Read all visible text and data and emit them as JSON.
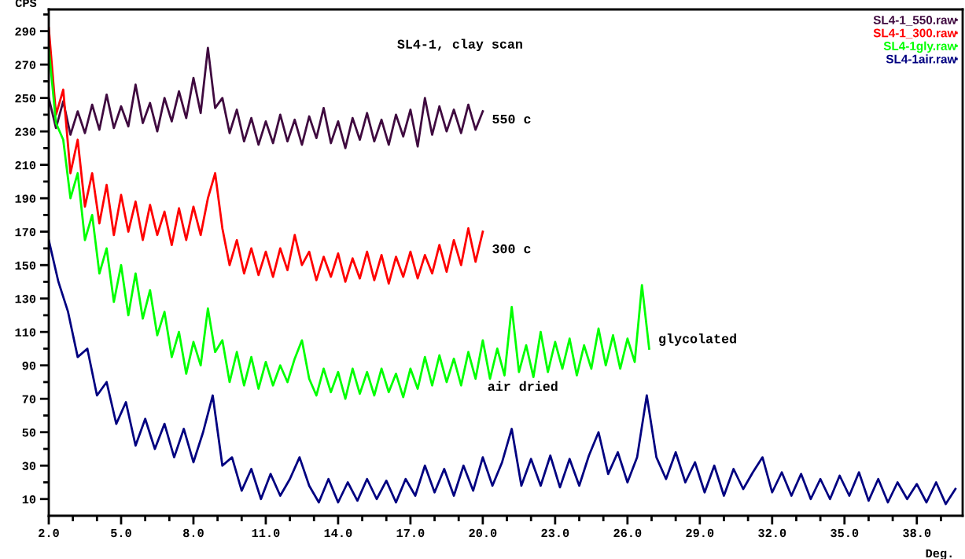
{
  "chart_data": {
    "type": "line",
    "title": "SL4-1, clay scan",
    "xlabel": "Deg.",
    "ylabel": "CPS",
    "xlim": [
      2,
      39.9
    ],
    "ylim": [
      0,
      303
    ],
    "xticks": [
      {
        "value": 2,
        "label": "2.0"
      },
      {
        "value": 3,
        "label": null
      },
      {
        "value": 4,
        "label": null
      },
      {
        "value": 5,
        "label": "5.0"
      },
      {
        "value": 6,
        "label": null
      },
      {
        "value": 7,
        "label": null
      },
      {
        "value": 8,
        "label": "8.0"
      },
      {
        "value": 9,
        "label": null
      },
      {
        "value": 10,
        "label": null
      },
      {
        "value": 11,
        "label": "11.0"
      },
      {
        "value": 12,
        "label": null
      },
      {
        "value": 13,
        "label": null
      },
      {
        "value": 14,
        "label": "14.0"
      },
      {
        "value": 15,
        "label": null
      },
      {
        "value": 16,
        "label": null
      },
      {
        "value": 17,
        "label": "17.0"
      },
      {
        "value": 18,
        "label": null
      },
      {
        "value": 19,
        "label": null
      },
      {
        "value": 20,
        "label": "20.0"
      },
      {
        "value": 21,
        "label": null
      },
      {
        "value": 22,
        "label": null
      },
      {
        "value": 23,
        "label": "23.0"
      },
      {
        "value": 24,
        "label": null
      },
      {
        "value": 25,
        "label": null
      },
      {
        "value": 26,
        "label": "26.0"
      },
      {
        "value": 27,
        "label": null
      },
      {
        "value": 28,
        "label": null
      },
      {
        "value": 29,
        "label": "29.0"
      },
      {
        "value": 30,
        "label": null
      },
      {
        "value": 31,
        "label": null
      },
      {
        "value": 32,
        "label": "32.0"
      },
      {
        "value": 33,
        "label": null
      },
      {
        "value": 34,
        "label": null
      },
      {
        "value": 35,
        "label": "35.0"
      },
      {
        "value": 36,
        "label": null
      },
      {
        "value": 37,
        "label": null
      },
      {
        "value": 38,
        "label": "38.0"
      },
      {
        "value": 39,
        "label": null
      }
    ],
    "yticks": [
      10,
      {
        "value": 20,
        "label": null
      },
      30,
      {
        "value": 40,
        "label": null
      },
      50,
      {
        "value": 60,
        "label": null
      },
      70,
      {
        "value": 80,
        "label": null
      },
      90,
      {
        "value": 100,
        "label": null
      },
      110,
      {
        "value": 120,
        "label": null
      },
      130,
      {
        "value": 140,
        "label": null
      },
      150,
      {
        "value": 160,
        "label": null
      },
      170,
      {
        "value": 180,
        "label": null
      },
      190,
      {
        "value": 200,
        "label": null
      },
      210,
      {
        "value": 220,
        "label": null
      },
      230,
      {
        "value": 240,
        "label": null
      },
      250,
      {
        "value": 260,
        "label": null
      },
      270,
      {
        "value": 280,
        "label": null
      },
      290,
      {
        "value": 300,
        "label": null
      }
    ],
    "grid": false,
    "legend": "top right",
    "marker": "none",
    "line_style": "solid",
    "annotations": [
      "550 c",
      "300 c",
      "glycolated",
      "air dried"
    ],
    "series": [
      {
        "name": "SL4-1_550.raw",
        "color": "#3f0a3f",
        "x": [
          2.0,
          2.3,
          2.6,
          2.9,
          3.2,
          3.5,
          3.8,
          4.1,
          4.4,
          4.7,
          5.0,
          5.3,
          5.6,
          5.9,
          6.2,
          6.5,
          6.8,
          7.1,
          7.4,
          7.7,
          8.0,
          8.3,
          8.6,
          8.9,
          9.2,
          9.5,
          9.8,
          10.1,
          10.4,
          10.7,
          11.0,
          11.3,
          11.6,
          11.9,
          12.2,
          12.5,
          12.8,
          13.1,
          13.4,
          13.7,
          14.0,
          14.3,
          14.6,
          14.9,
          15.2,
          15.5,
          15.8,
          16.1,
          16.4,
          16.7,
          17.0,
          17.3,
          17.6,
          17.9,
          18.2,
          18.5,
          18.8,
          19.1,
          19.4,
          19.7,
          20.0
        ],
        "values": [
          250,
          232,
          248,
          228,
          242,
          229,
          246,
          231,
          252,
          232,
          245,
          233,
          258,
          235,
          247,
          230,
          250,
          236,
          254,
          238,
          262,
          241,
          280,
          244,
          250,
          229,
          243,
          224,
          238,
          222,
          236,
          223,
          240,
          224,
          237,
          222,
          239,
          226,
          244,
          223,
          236,
          220,
          238,
          225,
          241,
          224,
          237,
          222,
          240,
          227,
          243,
          221,
          250,
          228,
          245,
          230,
          243,
          229,
          246,
          231,
          242
        ]
      },
      {
        "name": "SL4-1_300.raw",
        "color": "#ff0000",
        "x": [
          2.0,
          2.3,
          2.6,
          2.9,
          3.2,
          3.5,
          3.8,
          4.1,
          4.4,
          4.7,
          5.0,
          5.3,
          5.6,
          5.9,
          6.2,
          6.5,
          6.8,
          7.1,
          7.4,
          7.7,
          8.0,
          8.3,
          8.6,
          8.9,
          9.2,
          9.5,
          9.8,
          10.1,
          10.4,
          10.7,
          11.0,
          11.3,
          11.6,
          11.9,
          12.2,
          12.5,
          12.8,
          13.1,
          13.4,
          13.7,
          14.0,
          14.3,
          14.6,
          14.9,
          15.2,
          15.5,
          15.8,
          16.1,
          16.4,
          16.7,
          17.0,
          17.3,
          17.6,
          17.9,
          18.2,
          18.5,
          18.8,
          19.1,
          19.4,
          19.7,
          20.0
        ],
        "values": [
          292,
          240,
          255,
          205,
          225,
          185,
          205,
          175,
          198,
          168,
          192,
          170,
          188,
          165,
          186,
          168,
          182,
          162,
          184,
          165,
          185,
          168,
          190,
          205,
          172,
          150,
          165,
          145,
          160,
          144,
          158,
          143,
          160,
          147,
          168,
          150,
          158,
          141,
          155,
          143,
          157,
          140,
          154,
          142,
          158,
          141,
          156,
          139,
          155,
          143,
          158,
          142,
          156,
          145,
          162,
          146,
          165,
          150,
          172,
          152,
          170
        ]
      },
      {
        "name": "SL4-1gly.raw",
        "color": "#00ff00",
        "x": [
          2.0,
          2.3,
          2.6,
          2.9,
          3.2,
          3.5,
          3.8,
          4.1,
          4.4,
          4.7,
          5.0,
          5.3,
          5.6,
          5.9,
          6.2,
          6.5,
          6.8,
          7.1,
          7.4,
          7.7,
          8.0,
          8.3,
          8.6,
          8.9,
          9.2,
          9.5,
          9.8,
          10.1,
          10.4,
          10.7,
          11.0,
          11.3,
          11.6,
          11.9,
          12.2,
          12.5,
          12.8,
          13.1,
          13.4,
          13.7,
          14.0,
          14.3,
          14.6,
          14.9,
          15.2,
          15.5,
          15.8,
          16.1,
          16.4,
          16.7,
          17.0,
          17.3,
          17.6,
          17.9,
          18.2,
          18.5,
          18.8,
          19.1,
          19.4,
          19.7,
          20.0,
          20.3,
          20.6,
          20.9,
          21.2,
          21.5,
          21.8,
          22.1,
          22.4,
          22.7,
          23.0,
          23.3,
          23.6,
          23.9,
          24.2,
          24.5,
          24.8,
          25.1,
          25.4,
          25.7,
          26.0,
          26.3,
          26.6,
          26.9
        ],
        "values": [
          280,
          235,
          225,
          190,
          205,
          165,
          180,
          145,
          160,
          128,
          150,
          120,
          145,
          118,
          135,
          108,
          122,
          95,
          110,
          85,
          104,
          90,
          124,
          98,
          105,
          80,
          98,
          78,
          95,
          76,
          92,
          78,
          90,
          80,
          94,
          105,
          82,
          72,
          88,
          74,
          86,
          70,
          88,
          73,
          86,
          72,
          88,
          74,
          85,
          71,
          88,
          76,
          95,
          78,
          96,
          80,
          94,
          78,
          98,
          82,
          105,
          82,
          100,
          84,
          125,
          86,
          102,
          83,
          110,
          86,
          104,
          88,
          106,
          84,
          102,
          88,
          112,
          90,
          108,
          88,
          106,
          92,
          138,
          100
        ]
      },
      {
        "name": "SL4-1air.raw",
        "color": "#000080",
        "x": [
          2.0,
          2.4,
          2.8,
          3.2,
          3.6,
          4.0,
          4.4,
          4.8,
          5.2,
          5.6,
          6.0,
          6.4,
          6.8,
          7.2,
          7.6,
          8.0,
          8.4,
          8.8,
          9.2,
          9.6,
          10.0,
          10.4,
          10.8,
          11.2,
          11.6,
          12.0,
          12.4,
          12.8,
          13.2,
          13.6,
          14.0,
          14.4,
          14.8,
          15.2,
          15.6,
          16.0,
          16.4,
          16.8,
          17.2,
          17.6,
          18.0,
          18.4,
          18.8,
          19.2,
          19.6,
          20.0,
          20.4,
          20.8,
          21.2,
          21.6,
          22.0,
          22.4,
          22.8,
          23.2,
          23.6,
          24.0,
          24.4,
          24.8,
          25.2,
          25.6,
          26.0,
          26.4,
          26.8,
          27.2,
          27.6,
          28.0,
          28.4,
          28.8,
          29.2,
          29.6,
          30.0,
          30.4,
          30.8,
          31.2,
          31.6,
          32.0,
          32.4,
          32.8,
          33.2,
          33.6,
          34.0,
          34.4,
          34.8,
          35.2,
          35.6,
          36.0,
          36.4,
          36.8,
          37.2,
          37.6,
          38.0,
          38.4,
          38.8,
          39.2,
          39.6
        ],
        "values": [
          165,
          140,
          122,
          95,
          100,
          72,
          80,
          55,
          68,
          42,
          58,
          40,
          55,
          35,
          52,
          32,
          50,
          72,
          30,
          35,
          15,
          28,
          10,
          25,
          12,
          22,
          35,
          18,
          8,
          22,
          8,
          20,
          9,
          22,
          10,
          21,
          8,
          22,
          12,
          30,
          14,
          28,
          12,
          30,
          15,
          35,
          18,
          32,
          52,
          18,
          34,
          18,
          36,
          17,
          34,
          18,
          36,
          50,
          25,
          38,
          20,
          35,
          72,
          35,
          22,
          38,
          20,
          32,
          14,
          30,
          12,
          28,
          16,
          26,
          35,
          14,
          26,
          12,
          25,
          10,
          22,
          10,
          24,
          12,
          26,
          9,
          22,
          8,
          20,
          10,
          19,
          8,
          20,
          7,
          16
        ]
      }
    ]
  }
}
